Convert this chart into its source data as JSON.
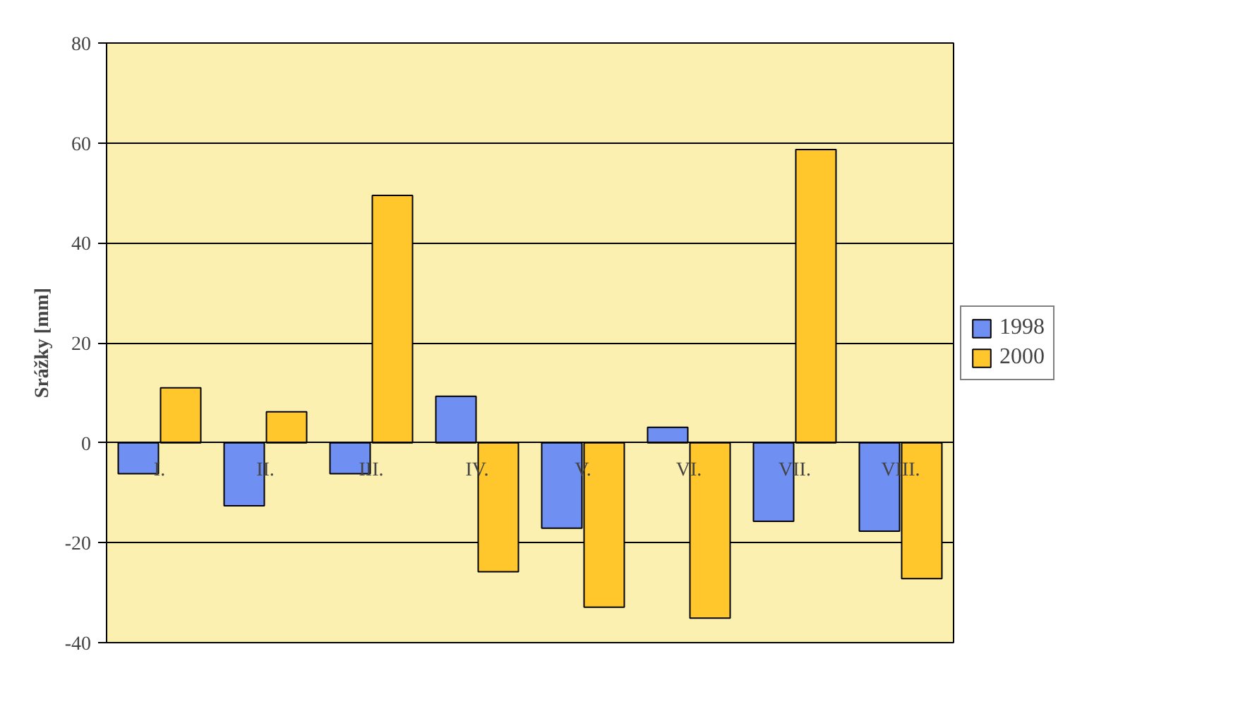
{
  "chart_data": {
    "type": "bar",
    "ylabel": "Srážky [mm]",
    "categories": [
      "I.",
      "II.",
      "III.",
      "IV.",
      "V.",
      "VI.",
      "VII.",
      "VIII."
    ],
    "series": [
      {
        "name": "1998",
        "color": "#6f8ff2",
        "values": [
          -6.2,
          -12.6,
          -6.2,
          9.3,
          -17.1,
          3.1,
          -15.7,
          -17.7
        ]
      },
      {
        "name": "2000",
        "color": "#ffc72c",
        "values": [
          11,
          6.2,
          49.5,
          -25.8,
          -32.9,
          -35.1,
          58.7,
          -27.2
        ]
      }
    ],
    "ylim": [
      -40,
      80
    ],
    "yticks": [
      -40,
      -20,
      0,
      20,
      40,
      60,
      80
    ],
    "grid": "y",
    "legend": "right"
  }
}
